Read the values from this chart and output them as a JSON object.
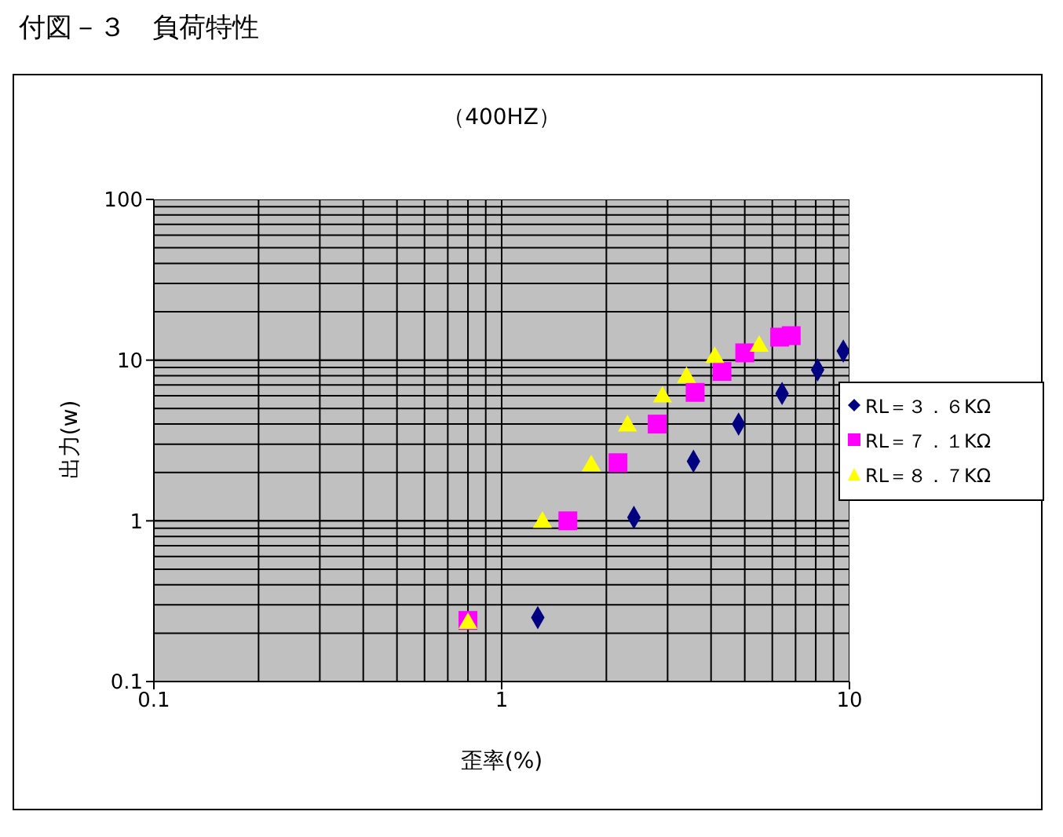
{
  "chart_data": {
    "type": "scatter",
    "title": "（400HZ）",
    "xlabel": "歪率(%)",
    "ylabel": "出力(w)",
    "annotations": [
      "付図－３　負荷特性"
    ],
    "log": "xy",
    "grid": true,
    "legend": "right",
    "xlim": [
      0.1,
      10
    ],
    "xticks": [
      0.1,
      1,
      10
    ],
    "ylim": [
      0.1,
      100
    ],
    "yticks": [
      0.1,
      1,
      10,
      100
    ],
    "series": [
      {
        "name": "RL＝３．６KΩ",
        "color": "#000080",
        "marker": "diamond",
        "x": [
          1.27,
          2.4,
          3.56,
          4.8,
          6.4,
          8.1,
          9.6
        ],
        "values": [
          0.25,
          1.05,
          2.35,
          4.0,
          6.2,
          8.7,
          11.4
        ]
      },
      {
        "name": "RL＝７．１KΩ",
        "color": "#ff00ff",
        "marker": "square",
        "x": [
          0.8,
          1.55,
          2.16,
          2.8,
          3.6,
          4.3,
          5.0,
          6.3,
          6.8
        ],
        "values": [
          0.24,
          1.0,
          2.3,
          4.0,
          6.3,
          8.5,
          11.1,
          13.9,
          14.2
        ]
      },
      {
        "name": "RL＝８．７KΩ",
        "color": "#ffff00",
        "marker": "triangle",
        "x": [
          0.8,
          1.31,
          1.81,
          2.3,
          2.9,
          3.4,
          4.1,
          5.5
        ],
        "values": [
          0.23,
          0.98,
          2.2,
          3.9,
          5.9,
          7.8,
          10.4,
          12.2
        ]
      }
    ]
  }
}
